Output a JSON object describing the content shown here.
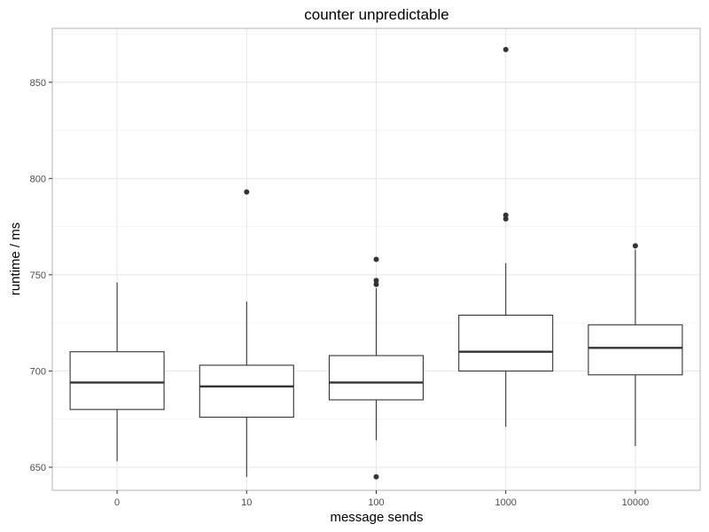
{
  "chart_data": {
    "type": "boxplot",
    "title": "counter unpredictable",
    "xlabel": "message sends",
    "ylabel": "runtime / ms",
    "ylim": [
      638,
      878
    ],
    "yticks": [
      650,
      700,
      750,
      800,
      850
    ],
    "grid": true,
    "categories": [
      "0",
      "10",
      "100",
      "1000",
      "10000"
    ],
    "boxes": [
      {
        "category": "0",
        "whisker_low": 653,
        "q1": 680,
        "median": 694,
        "q3": 710,
        "whisker_high": 746,
        "outliers": []
      },
      {
        "category": "10",
        "whisker_low": 645,
        "q1": 676,
        "median": 692,
        "q3": 703,
        "whisker_high": 736,
        "outliers": [
          793
        ]
      },
      {
        "category": "100",
        "whisker_low": 664,
        "q1": 685,
        "median": 694,
        "q3": 708,
        "whisker_high": 743,
        "outliers": [
          645,
          745,
          747,
          758
        ]
      },
      {
        "category": "1000",
        "whisker_low": 671,
        "q1": 700,
        "median": 710,
        "q3": 729,
        "whisker_high": 756,
        "outliers": [
          779,
          781,
          867
        ]
      },
      {
        "category": "10000",
        "whisker_low": 661,
        "q1": 698,
        "median": 712,
        "q3": 724,
        "whisker_high": 763,
        "outliers": [
          765
        ]
      }
    ]
  }
}
